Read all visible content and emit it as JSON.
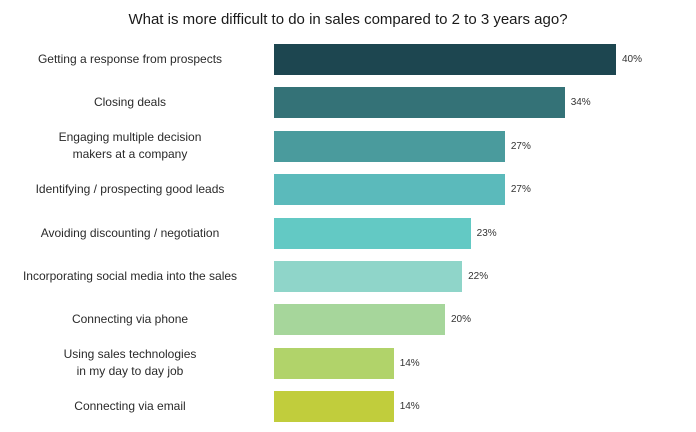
{
  "chart_data": {
    "type": "bar",
    "orientation": "horizontal",
    "title": "What is more difficult to do in sales compared to 2 to 3 years ago?",
    "categories": [
      "Getting a response from prospects",
      "Closing deals",
      "Engaging multiple decision\nmakers at a company",
      "Identifying / prospecting good leads",
      "Avoiding discounting / negotiation",
      "Incorporating social media into the sales",
      "Connecting via phone",
      "Using sales technologies\nin my day to day job",
      "Connecting via email"
    ],
    "values": [
      40,
      34,
      27,
      27,
      23,
      22,
      20,
      14,
      14
    ],
    "value_labels": [
      "40%",
      "34%",
      "27%",
      "27%",
      "23%",
      "22%",
      "20%",
      "14%",
      "14%"
    ],
    "colors": [
      "#1d4650",
      "#347277",
      "#4a9b9d",
      "#5bbabb",
      "#63c9c4",
      "#8fd5c9",
      "#a6d69b",
      "#b1d36a",
      "#c1cd3c"
    ],
    "grid": false,
    "legend": "none"
  }
}
